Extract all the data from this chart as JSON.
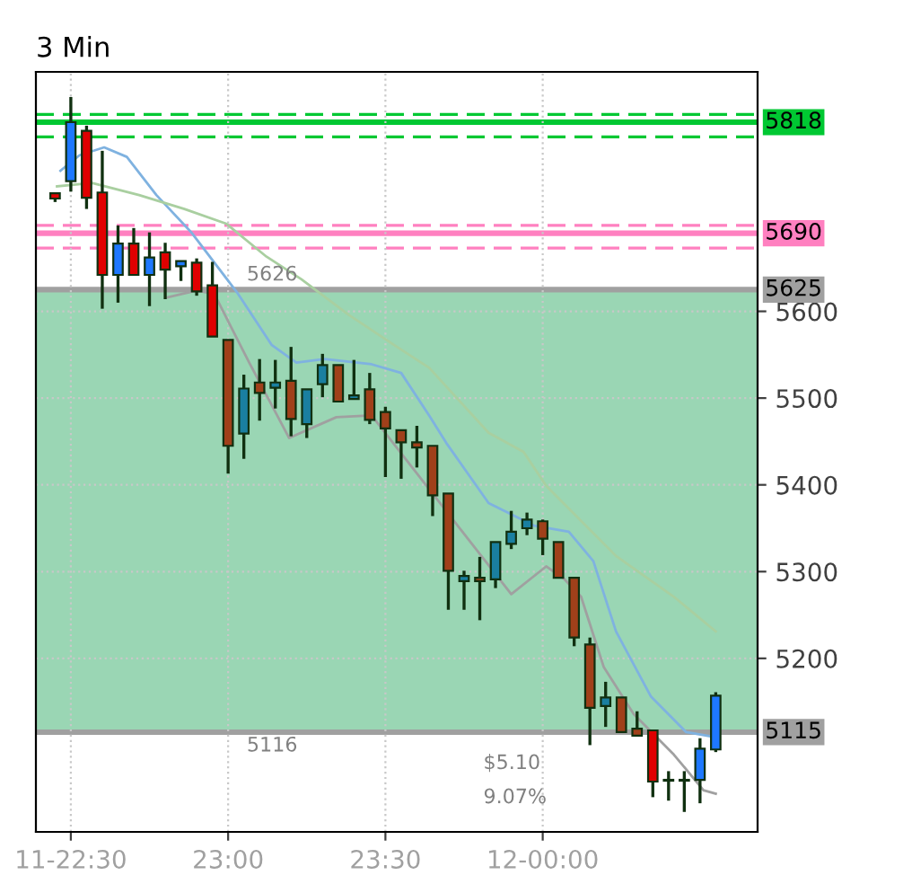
{
  "chart_data": {
    "type": "candlestick",
    "title": "3 Min",
    "x": [
      22.45,
      22.5,
      22.55,
      22.6,
      22.65,
      22.7,
      22.75,
      22.8,
      22.85,
      22.9,
      22.95,
      23.0,
      23.05,
      23.1,
      23.15,
      23.2,
      23.25,
      23.3,
      23.35,
      23.4,
      23.45,
      23.5,
      23.55,
      23.6,
      23.65,
      23.7,
      23.75,
      23.8,
      23.85,
      23.9,
      23.95,
      24.0,
      24.05,
      24.1,
      24.15,
      24.2,
      24.25,
      24.3,
      24.35,
      24.4,
      24.45,
      24.5,
      24.55
    ],
    "ohlc": [
      [
        5736,
        5736,
        5726,
        5730
      ],
      [
        5750,
        5847,
        5738,
        5818
      ],
      [
        5808,
        5814,
        5718,
        5731
      ],
      [
        5737,
        5785,
        5603,
        5642
      ],
      [
        5642,
        5699,
        5610,
        5678
      ],
      [
        5678,
        5696,
        5641,
        5642
      ],
      [
        5642,
        5691,
        5606,
        5662
      ],
      [
        5668,
        5679,
        5614,
        5648
      ],
      [
        5652,
        5658,
        5635,
        5658
      ],
      [
        5656,
        5661,
        5618,
        5623
      ],
      [
        5630,
        5657,
        5571,
        5571
      ],
      [
        5567,
        5567,
        5413,
        5445
      ],
      [
        5459,
        5527,
        5430,
        5511
      ],
      [
        5518,
        5545,
        5474,
        5506
      ],
      [
        5512,
        5544,
        5488,
        5518
      ],
      [
        5520,
        5559,
        5456,
        5476
      ],
      [
        5470,
        5510,
        5454,
        5510
      ],
      [
        5516,
        5551,
        5501,
        5538
      ],
      [
        5538,
        5538,
        5496,
        5496
      ],
      [
        5499,
        5544,
        5499,
        5503
      ],
      [
        5510,
        5529,
        5470,
        5475
      ],
      [
        5484,
        5490,
        5409,
        5465
      ],
      [
        5463,
        5463,
        5407,
        5449
      ],
      [
        5449,
        5468,
        5420,
        5443
      ],
      [
        5445,
        5445,
        5364,
        5388
      ],
      [
        5390,
        5390,
        5256,
        5301
      ],
      [
        5289,
        5301,
        5256,
        5295
      ],
      [
        5293,
        5317,
        5244,
        5289
      ],
      [
        5291,
        5334,
        5281,
        5334
      ],
      [
        5332,
        5370,
        5326,
        5346
      ],
      [
        5350,
        5368,
        5342,
        5360
      ],
      [
        5358,
        5360,
        5319,
        5338
      ],
      [
        5334,
        5334,
        5293,
        5293
      ],
      [
        5293,
        5293,
        5214,
        5224
      ],
      [
        5216,
        5224,
        5100,
        5143
      ],
      [
        5145,
        5173,
        5121,
        5155
      ],
      [
        5155,
        5155,
        5115,
        5115
      ],
      [
        5119,
        5139,
        5111,
        5111
      ],
      [
        5117,
        5117,
        5040,
        5058
      ],
      [
        5060,
        5070,
        5036,
        5059
      ],
      [
        5059,
        5070,
        5023,
        5060
      ],
      [
        5060,
        5108,
        5033,
        5096
      ],
      [
        5095,
        5161,
        5092,
        5157
      ]
    ],
    "colors": [
      "#e00000",
      "#1e78ff",
      "#e00000",
      "#e00000",
      "#1e78ff",
      "#e00000",
      "#1e78ff",
      "#e00000",
      "#1e78ff",
      "#e00000",
      "#e00000",
      "#a0401a",
      "#1a7fa0",
      "#a0401a",
      "#1a7fa0",
      "#a0401a",
      "#1a7fa0",
      "#1a7fa0",
      "#a0401a",
      "#1a7fa0",
      "#a0401a",
      "#a0401a",
      "#a0401a",
      "#a0401a",
      "#a0401a",
      "#a0401a",
      "#1a7fa0",
      "#a0401a",
      "#1a7fa0",
      "#1a7fa0",
      "#1a7fa0",
      "#a0401a",
      "#a0401a",
      "#a0401a",
      "#a0401a",
      "#1a7fa0",
      "#a0401a",
      "#a0401a",
      "#e00000",
      "#e00000",
      "#1e78ff",
      "#1e78ff",
      "#1e78ff"
    ],
    "series": [
      {
        "type": "line",
        "color": "#7fb2e0",
        "x": [
          22.467,
          22.528,
          22.606,
          22.678,
          22.772,
          22.883,
          23.028,
          23.139,
          23.217,
          23.306,
          23.456,
          23.55,
          23.639,
          23.694,
          23.828,
          23.972,
          24.083,
          24.161,
          24.233,
          24.344,
          24.456,
          24.55
        ],
        "values": [
          5762,
          5780,
          5789,
          5778,
          5734,
          5691,
          5622,
          5561,
          5541,
          5545,
          5539,
          5529,
          5480,
          5448,
          5379,
          5353,
          5346,
          5312,
          5231,
          5156,
          5115,
          5109
        ]
      },
      {
        "type": "line",
        "color": "#a9cfa0",
        "x": [
          22.456,
          22.567,
          22.717,
          22.861,
          22.994,
          23.122,
          23.233,
          23.383,
          23.528,
          23.639,
          23.828,
          23.939,
          24.011,
          24.233,
          24.417,
          24.55
        ],
        "values": [
          5744,
          5748,
          5734,
          5718,
          5701,
          5663,
          5637,
          5596,
          5561,
          5535,
          5460,
          5438,
          5399,
          5318,
          5271,
          5231
        ]
      },
      {
        "type": "line",
        "color": "#a0a0a0",
        "x": [
          22.806,
          22.9,
          22.956,
          23.067,
          23.194,
          23.344,
          23.456,
          23.9,
          24.011,
          24.067,
          24.122,
          24.194,
          24.289,
          24.417,
          24.511,
          24.55
        ],
        "values": [
          5616,
          5624,
          5620,
          5541,
          5454,
          5478,
          5480,
          5274,
          5306,
          5292,
          5271,
          5190,
          5136,
          5089,
          5048,
          5044
        ]
      }
    ],
    "xlim": [
      22.389,
      24.683
    ],
    "xticks": [
      {
        "value": 22.5,
        "label": "11-22:30"
      },
      {
        "value": 23.0,
        "label": "23:00"
      },
      {
        "value": 23.5,
        "label": "23:30"
      },
      {
        "value": 24.0,
        "label": "12-00:00"
      }
    ],
    "ylim": [
      5000,
      5876
    ],
    "yticks": [
      5200,
      5300,
      5400,
      5500,
      5600
    ],
    "grid": true,
    "ref_lines": [
      {
        "axis": "y",
        "value": 5827,
        "color": "#00c832",
        "line_style": "dashed"
      },
      {
        "axis": "y",
        "value": 5818,
        "label": "5818",
        "color": "#00c832"
      },
      {
        "axis": "y",
        "value": 5801,
        "color": "#00c832",
        "line_style": "dashed"
      },
      {
        "axis": "y",
        "value": 5699,
        "color": "#ff80c0",
        "line_style": "dashed"
      },
      {
        "axis": "y",
        "value": 5690,
        "label": "5690",
        "color": "#ff80c0"
      },
      {
        "axis": "y",
        "value": 5673,
        "color": "#ff80c0",
        "line_style": "dashed"
      },
      {
        "axis": "y",
        "value": 5625,
        "label": "5625",
        "color": "#a0a0a0"
      },
      {
        "axis": "y",
        "value": 5115,
        "label": "5115",
        "color": "#a0a0a0"
      }
    ],
    "bands": [
      {
        "axis": "y",
        "from": 5116,
        "to": 5625,
        "color": "#9ad6b4"
      }
    ],
    "annotations": [
      {
        "text": "5626",
        "x": 23.14,
        "y": 5625
      },
      {
        "text": "5116",
        "x": 23.14,
        "y": 5116
      },
      "$5.10",
      "9.07%"
    ]
  }
}
